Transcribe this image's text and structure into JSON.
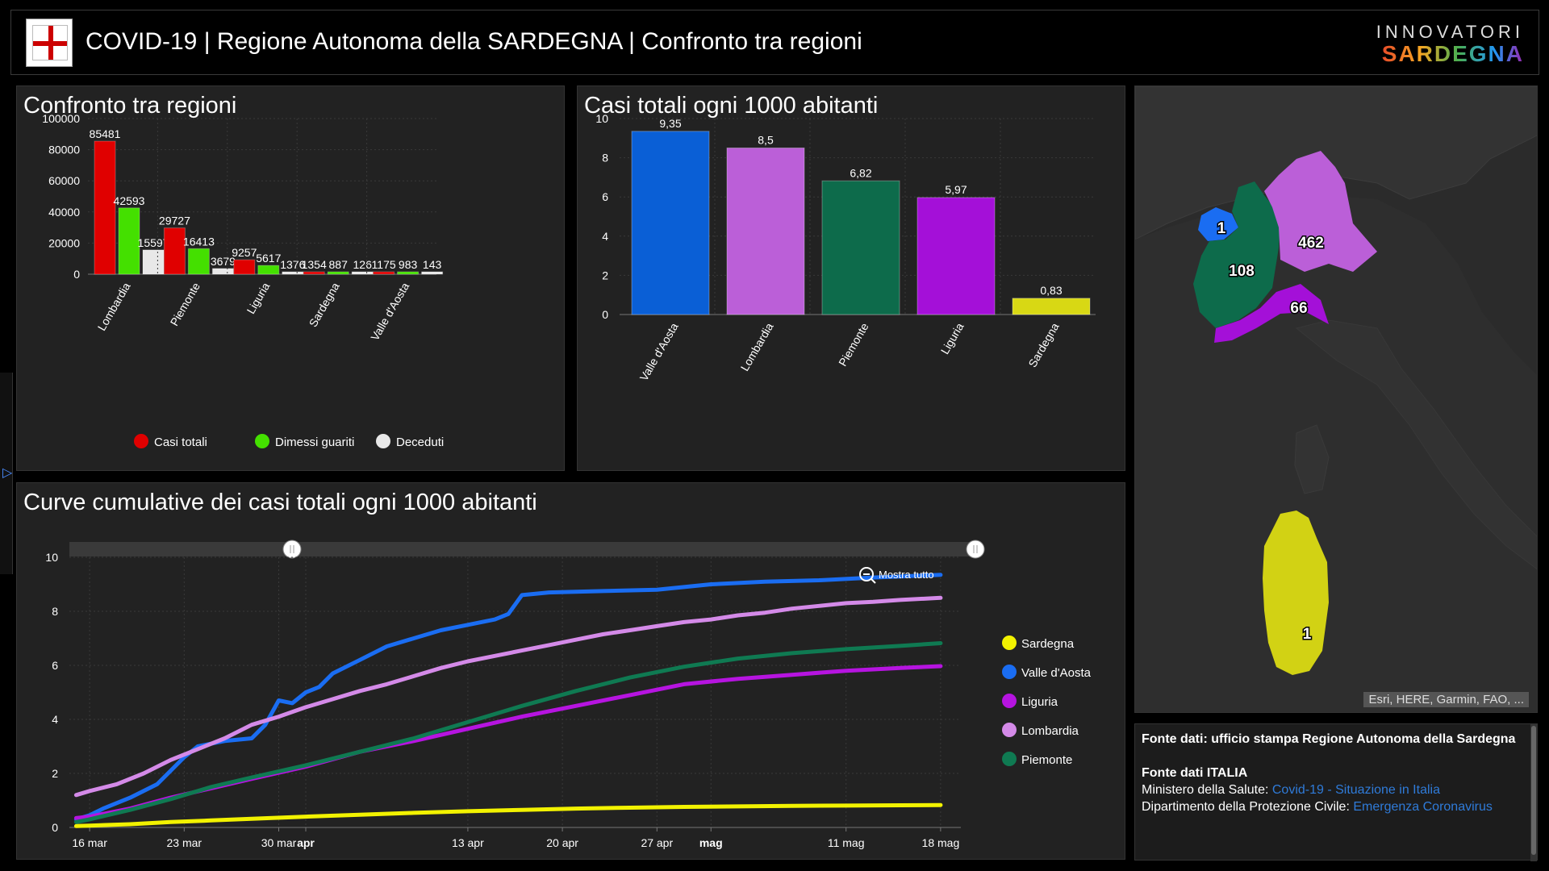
{
  "header": {
    "title": "COVID-19 | Regione Autonoma della SARDEGNA | Confronto tra regioni",
    "brand_top": "INNOVATORI",
    "brand_bottom": "SARDEGNA"
  },
  "panels": {
    "bar1_title": "Confronto tra regioni",
    "bar2_title": "Casi totali ogni 1000 abitanti",
    "line_title": "Curve cumulative dei casi totali ogni 1000 abitanti"
  },
  "chart_data": [
    {
      "type": "bar",
      "categories": [
        "Lombardia",
        "Piemonte",
        "Liguria",
        "Sardegna",
        "Valle d'Aosta"
      ],
      "series": [
        {
          "name": "Casi totali",
          "color": "#e00000",
          "values": [
            85481,
            29727,
            9257,
            1354,
            1175
          ]
        },
        {
          "name": "Dimessi guariti",
          "color": "#44e000",
          "values": [
            42593,
            16413,
            5617,
            887,
            983
          ]
        },
        {
          "name": "Deceduti",
          "color": "#e8e8e8",
          "values": [
            15597,
            3679,
            1376,
            126,
            143
          ]
        }
      ],
      "yticks": [
        "0",
        "20000",
        "40000",
        "60000",
        "80000",
        "100000"
      ],
      "ylim": [
        0,
        100000
      ],
      "legend": "bottom",
      "grid": true
    },
    {
      "type": "bar",
      "categories": [
        "Valle d'Aosta",
        "Lombardia",
        "Piemonte",
        "Liguria",
        "Sardegna"
      ],
      "values": [
        9.35,
        8.5,
        6.82,
        5.97,
        0.83
      ],
      "value_labels": [
        "9,35",
        "8,5",
        "6,82",
        "5,97",
        "0,83"
      ],
      "colors": [
        "#0a5fd6",
        "#bb5fd8",
        "#0d6b4b",
        "#a410d8",
        "#d8d814"
      ],
      "yticks": [
        "0",
        "2",
        "4",
        "6",
        "8",
        "10"
      ],
      "ylim": [
        0,
        10
      ],
      "grid": true
    },
    {
      "type": "line",
      "x_ticks": [
        {
          "label": "16 mar",
          "day": 0,
          "bold": false
        },
        {
          "label": "23 mar",
          "day": 7,
          "bold": false
        },
        {
          "label": "30 mar",
          "day": 14,
          "bold": false
        },
        {
          "label": "apr",
          "day": 16,
          "bold": true
        },
        {
          "label": "13 apr",
          "day": 28,
          "bold": false
        },
        {
          "label": "20 apr",
          "day": 35,
          "bold": false
        },
        {
          "label": "27 apr",
          "day": 42,
          "bold": false
        },
        {
          "label": "mag",
          "day": 46,
          "bold": true
        },
        {
          "label": "11 mag",
          "day": 56,
          "bold": false
        },
        {
          "label": "18 mag",
          "day": 63,
          "bold": false
        }
      ],
      "xlim": [
        -1.5,
        64.5
      ],
      "yticks": [
        "0",
        "2",
        "4",
        "6",
        "8",
        "10"
      ],
      "ylim": [
        0,
        10
      ],
      "zoom_label": "Mostra tutto",
      "legend": "right",
      "series": [
        {
          "name": "Sardegna",
          "color": "#f2f200",
          "points": [
            [
              -1,
              0.05
            ],
            [
              0,
              0.07
            ],
            [
              3,
              0.12
            ],
            [
              6,
              0.2
            ],
            [
              9,
              0.26
            ],
            [
              12,
              0.32
            ],
            [
              16,
              0.4
            ],
            [
              20,
              0.47
            ],
            [
              24,
              0.54
            ],
            [
              28,
              0.6
            ],
            [
              32,
              0.65
            ],
            [
              36,
              0.7
            ],
            [
              40,
              0.73
            ],
            [
              44,
              0.76
            ],
            [
              48,
              0.78
            ],
            [
              52,
              0.8
            ],
            [
              56,
              0.81
            ],
            [
              60,
              0.82
            ],
            [
              63,
              0.83
            ]
          ]
        },
        {
          "name": "Valle d'Aosta",
          "color": "#1a6df2",
          "points": [
            [
              -1,
              0.3
            ],
            [
              0,
              0.45
            ],
            [
              1,
              0.7
            ],
            [
              3,
              1.1
            ],
            [
              5,
              1.6
            ],
            [
              6,
              2.1
            ],
            [
              7,
              2.6
            ],
            [
              8,
              3.0
            ],
            [
              9,
              3.1
            ],
            [
              10,
              3.2
            ],
            [
              12,
              3.3
            ],
            [
              13,
              3.8
            ],
            [
              14,
              4.7
            ],
            [
              15,
              4.6
            ],
            [
              16,
              5.0
            ],
            [
              17,
              5.2
            ],
            [
              18,
              5.7
            ],
            [
              20,
              6.2
            ],
            [
              22,
              6.7
            ],
            [
              24,
              7.0
            ],
            [
              26,
              7.3
            ],
            [
              28,
              7.5
            ],
            [
              30,
              7.7
            ],
            [
              31,
              7.9
            ],
            [
              32,
              8.6
            ],
            [
              34,
              8.7
            ],
            [
              38,
              8.75
            ],
            [
              42,
              8.8
            ],
            [
              46,
              9.0
            ],
            [
              50,
              9.1
            ],
            [
              54,
              9.15
            ],
            [
              58,
              9.25
            ],
            [
              63,
              9.35
            ]
          ]
        },
        {
          "name": "Liguria",
          "color": "#b614e0",
          "points": [
            [
              -1,
              0.35
            ],
            [
              0,
              0.4
            ],
            [
              3,
              0.7
            ],
            [
              6,
              1.1
            ],
            [
              9,
              1.45
            ],
            [
              12,
              1.8
            ],
            [
              16,
              2.25
            ],
            [
              20,
              2.8
            ],
            [
              24,
              3.2
            ],
            [
              28,
              3.65
            ],
            [
              32,
              4.1
            ],
            [
              36,
              4.5
            ],
            [
              40,
              4.9
            ],
            [
              44,
              5.3
            ],
            [
              48,
              5.5
            ],
            [
              52,
              5.65
            ],
            [
              56,
              5.8
            ],
            [
              60,
              5.9
            ],
            [
              63,
              5.97
            ]
          ]
        },
        {
          "name": "Lombardia",
          "color": "#d48ae8",
          "points": [
            [
              -1,
              1.2
            ],
            [
              0,
              1.35
            ],
            [
              2,
              1.6
            ],
            [
              4,
              2.0
            ],
            [
              6,
              2.5
            ],
            [
              8,
              2.9
            ],
            [
              10,
              3.3
            ],
            [
              12,
              3.8
            ],
            [
              14,
              4.1
            ],
            [
              16,
              4.45
            ],
            [
              18,
              4.75
            ],
            [
              20,
              5.05
            ],
            [
              22,
              5.3
            ],
            [
              24,
              5.6
            ],
            [
              26,
              5.9
            ],
            [
              28,
              6.15
            ],
            [
              30,
              6.35
            ],
            [
              32,
              6.55
            ],
            [
              34,
              6.75
            ],
            [
              36,
              6.95
            ],
            [
              38,
              7.15
            ],
            [
              40,
              7.3
            ],
            [
              42,
              7.45
            ],
            [
              44,
              7.6
            ],
            [
              46,
              7.7
            ],
            [
              48,
              7.85
            ],
            [
              50,
              7.95
            ],
            [
              52,
              8.1
            ],
            [
              54,
              8.2
            ],
            [
              56,
              8.3
            ],
            [
              58,
              8.35
            ],
            [
              60,
              8.42
            ],
            [
              63,
              8.5
            ]
          ]
        },
        {
          "name": "Piemonte",
          "color": "#0f7a52",
          "points": [
            [
              -1,
              0.2
            ],
            [
              0,
              0.3
            ],
            [
              3,
              0.65
            ],
            [
              6,
              1.05
            ],
            [
              9,
              1.5
            ],
            [
              12,
              1.85
            ],
            [
              16,
              2.3
            ],
            [
              20,
              2.8
            ],
            [
              24,
              3.3
            ],
            [
              28,
              3.9
            ],
            [
              32,
              4.5
            ],
            [
              36,
              5.05
            ],
            [
              40,
              5.55
            ],
            [
              44,
              5.95
            ],
            [
              48,
              6.25
            ],
            [
              52,
              6.45
            ],
            [
              56,
              6.6
            ],
            [
              60,
              6.72
            ],
            [
              63,
              6.82
            ]
          ]
        }
      ]
    }
  ],
  "map": {
    "labels": {
      "valle_daosta": "1",
      "piemonte": "108",
      "lombardia": "462",
      "liguria": "66",
      "sardegna": "1"
    },
    "attribution": "Esri, HERE, Garmin, FAO, ..."
  },
  "sources": {
    "line1": "Fonte dati: ufficio stampa Regione Autonoma della Sardegna",
    "line2": "Fonte dati ITALIA",
    "line3_prefix": "Ministero della Salute: ",
    "line3_link": "Covid-19 - Situazione in Italia",
    "line4_prefix": "Dipartimento della Protezione Civile: ",
    "line4_link": "Emergenza Coronavirus"
  }
}
